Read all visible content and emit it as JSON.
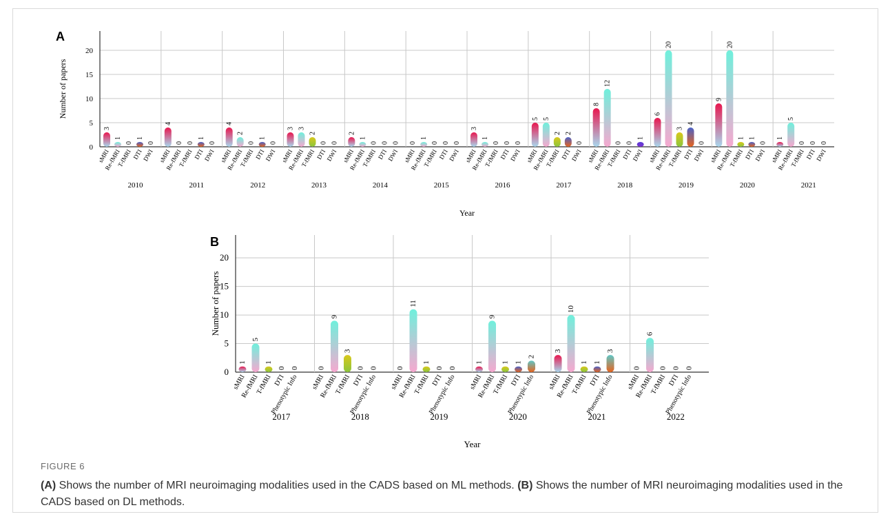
{
  "chart_data": [
    {
      "type": "bar",
      "panel_label": "A",
      "ylabel": "Number of papers",
      "xlabel": "Year",
      "ylim": [
        0,
        24
      ],
      "yticks": [
        0,
        5,
        10,
        15,
        20
      ],
      "grid": true,
      "modalities": [
        "sMRI",
        "Re-fMRI",
        "T-fMRI",
        "DTI",
        "DWI"
      ],
      "groups": [
        {
          "year": "2010",
          "values": [
            3,
            1,
            0,
            1,
            0
          ]
        },
        {
          "year": "2011",
          "values": [
            4,
            0,
            0,
            1,
            0
          ]
        },
        {
          "year": "2012",
          "values": [
            4,
            2,
            0,
            1,
            0
          ]
        },
        {
          "year": "2013",
          "values": [
            3,
            3,
            2,
            0,
            0
          ]
        },
        {
          "year": "2014",
          "values": [
            2,
            1,
            0,
            0,
            0
          ]
        },
        {
          "year": "2015",
          "values": [
            0,
            1,
            0,
            0,
            0
          ]
        },
        {
          "year": "2016",
          "values": [
            3,
            1,
            0,
            0,
            0
          ]
        },
        {
          "year": "2017",
          "values": [
            5,
            5,
            2,
            2,
            0
          ]
        },
        {
          "year": "2018",
          "values": [
            8,
            12,
            0,
            0,
            1
          ]
        },
        {
          "year": "2019",
          "values": [
            6,
            20,
            3,
            4,
            0
          ]
        },
        {
          "year": "2020",
          "values": [
            9,
            20,
            1,
            1,
            0
          ]
        },
        {
          "year": "2021",
          "values": [
            1,
            5,
            0,
            0,
            0
          ]
        }
      ]
    },
    {
      "type": "bar",
      "panel_label": "B",
      "ylabel": "Number of papers",
      "xlabel": "Year",
      "ylim": [
        0,
        24
      ],
      "yticks": [
        0,
        5,
        10,
        15,
        20
      ],
      "grid": true,
      "modalities": [
        "sMRI",
        "Re-fMRI",
        "T-fMRI",
        "DTI",
        "Phenotypic Info"
      ],
      "groups": [
        {
          "year": "2017",
          "values": [
            1,
            5,
            1,
            0,
            0
          ]
        },
        {
          "year": "2018",
          "values": [
            0,
            9,
            3,
            0,
            0
          ]
        },
        {
          "year": "2019",
          "values": [
            0,
            11,
            1,
            0,
            0
          ]
        },
        {
          "year": "2020",
          "values": [
            1,
            9,
            1,
            1,
            2
          ]
        },
        {
          "year": "2021",
          "values": [
            3,
            10,
            1,
            1,
            3
          ]
        },
        {
          "year": "2022",
          "values": [
            0,
            6,
            0,
            0,
            0
          ]
        }
      ]
    }
  ],
  "colors": {
    "sMRI": [
      "#e8174f",
      "#a9d8ee"
    ],
    "Re-fMRI": [
      "#6ff0dc",
      "#f6a8cf"
    ],
    "T-fMRI": [
      "#d9c81c",
      "#8cc63e"
    ],
    "DTI": [
      "#4a62c8",
      "#e8641e"
    ],
    "DWI": [
      "#5a3fd6",
      "#7b2fd0"
    ],
    "Phenotypic Info": [
      "#5fc6c6",
      "#e8641e"
    ],
    "grid": "#c8c8c8"
  },
  "caption": {
    "label": "FIGURE 6",
    "a_tag": "(A)",
    "a_text": " Shows the number of MRI neuroimaging modalities used in the CADS based on ML methods. ",
    "b_tag": "(B)",
    "b_text": " Shows the number of MRI neuroimaging modalities used in the CADS based on DL methods."
  }
}
